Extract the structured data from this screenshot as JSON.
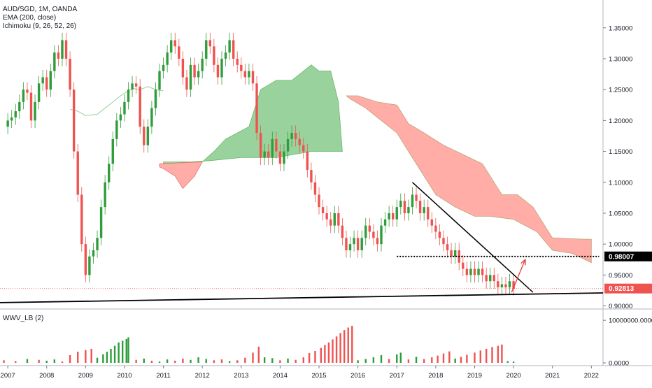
{
  "legend": {
    "title": "AUD/SGD, 1M, OANDA",
    "ema": "EMA (200, close)",
    "ichimoku": "Ichimoku (9, 26, 52, 26)",
    "volume": "WWV_LB (2)"
  },
  "colors": {
    "up": "#26a69a",
    "up_candle": "#2e9d3a",
    "down_candle": "#ef5350",
    "cloud_bull": "#81c784",
    "cloud_bear": "#ff8a80",
    "ema": "#a5d6a7",
    "price_marker": "#ef5350",
    "trendline": "#000000",
    "arrow": "#e53935"
  },
  "chart_data": [
    {
      "type": "candlestick",
      "title": "AUD/SGD, 1M, OANDA",
      "x_ticks": [
        "2007",
        "2008",
        "2009",
        "2010",
        "2011",
        "2012",
        "2013",
        "2014",
        "2015",
        "2016",
        "2017",
        "2018",
        "2019",
        "2020",
        "2021",
        "2022"
      ],
      "y_ticks": [
        "1.35000",
        "1.30000",
        "1.25000",
        "1.20000",
        "1.15000",
        "1.10000",
        "1.05000",
        "1.00000",
        "0.95000",
        "0.90000"
      ],
      "ylim": [
        0.895,
        1.395
      ],
      "xlim": [
        2006.8,
        2022.3
      ],
      "last_price": "0.92813",
      "level_marker": "0.98007",
      "series_close": [
        [
          2006.9,
          1.19
        ],
        [
          2007.0,
          1.2
        ],
        [
          2007.1,
          1.205
        ],
        [
          2007.2,
          1.215
        ],
        [
          2007.3,
          1.23
        ],
        [
          2007.4,
          1.25
        ],
        [
          2007.5,
          1.245
        ],
        [
          2007.6,
          1.2
        ],
        [
          2007.7,
          1.23
        ],
        [
          2007.8,
          1.26
        ],
        [
          2007.9,
          1.27
        ],
        [
          2008.0,
          1.25
        ],
        [
          2008.1,
          1.28
        ],
        [
          2008.2,
          1.31
        ],
        [
          2008.3,
          1.3
        ],
        [
          2008.4,
          1.33
        ],
        [
          2008.5,
          1.3
        ],
        [
          2008.6,
          1.25
        ],
        [
          2008.7,
          1.15
        ],
        [
          2008.8,
          1.08
        ],
        [
          2008.9,
          1.0
        ],
        [
          2009.0,
          0.95
        ],
        [
          2009.1,
          0.98
        ],
        [
          2009.2,
          0.99
        ],
        [
          2009.3,
          1.01
        ],
        [
          2009.4,
          1.06
        ],
        [
          2009.5,
          1.1
        ],
        [
          2009.6,
          1.13
        ],
        [
          2009.7,
          1.17
        ],
        [
          2009.8,
          1.2
        ],
        [
          2009.9,
          1.21
        ],
        [
          2010.0,
          1.23
        ],
        [
          2010.1,
          1.25
        ],
        [
          2010.2,
          1.26
        ],
        [
          2010.3,
          1.255
        ],
        [
          2010.4,
          1.19
        ],
        [
          2010.5,
          1.16
        ],
        [
          2010.6,
          1.19
        ],
        [
          2010.7,
          1.22
        ],
        [
          2010.8,
          1.25
        ],
        [
          2010.9,
          1.28
        ],
        [
          2011.0,
          1.29
        ],
        [
          2011.1,
          1.31
        ],
        [
          2011.2,
          1.33
        ],
        [
          2011.3,
          1.32
        ],
        [
          2011.4,
          1.3
        ],
        [
          2011.5,
          1.27
        ],
        [
          2011.6,
          1.25
        ],
        [
          2011.7,
          1.29
        ],
        [
          2011.8,
          1.27
        ],
        [
          2011.9,
          1.28
        ],
        [
          2012.0,
          1.3
        ],
        [
          2012.1,
          1.33
        ],
        [
          2012.2,
          1.32
        ],
        [
          2012.3,
          1.29
        ],
        [
          2012.4,
          1.27
        ],
        [
          2012.5,
          1.3
        ],
        [
          2012.6,
          1.31
        ],
        [
          2012.7,
          1.33
        ],
        [
          2012.8,
          1.3
        ],
        [
          2012.9,
          1.29
        ],
        [
          2013.0,
          1.28
        ],
        [
          2013.1,
          1.27
        ],
        [
          2013.2,
          1.28
        ],
        [
          2013.3,
          1.26
        ],
        [
          2013.4,
          1.18
        ],
        [
          2013.5,
          1.14
        ],
        [
          2013.6,
          1.15
        ],
        [
          2013.7,
          1.14
        ],
        [
          2013.8,
          1.17
        ],
        [
          2013.9,
          1.15
        ],
        [
          2014.0,
          1.13
        ],
        [
          2014.1,
          1.15
        ],
        [
          2014.2,
          1.17
        ],
        [
          2014.3,
          1.18
        ],
        [
          2014.4,
          1.17
        ],
        [
          2014.5,
          1.16
        ],
        [
          2014.6,
          1.15
        ],
        [
          2014.7,
          1.12
        ],
        [
          2014.8,
          1.1
        ],
        [
          2014.9,
          1.08
        ],
        [
          2015.0,
          1.06
        ],
        [
          2015.1,
          1.05
        ],
        [
          2015.2,
          1.04
        ],
        [
          2015.3,
          1.03
        ],
        [
          2015.4,
          1.05
        ],
        [
          2015.5,
          1.03
        ],
        [
          2015.6,
          1.01
        ],
        [
          2015.7,
          0.99
        ],
        [
          2015.8,
          1.0
        ],
        [
          2015.9,
          1.01
        ],
        [
          2016.0,
          0.99
        ],
        [
          2016.1,
          1.01
        ],
        [
          2016.2,
          1.03
        ],
        [
          2016.3,
          1.02
        ],
        [
          2016.4,
          1.01
        ],
        [
          2016.5,
          1.0
        ],
        [
          2016.6,
          1.03
        ],
        [
          2016.7,
          1.04
        ],
        [
          2016.8,
          1.05
        ],
        [
          2016.9,
          1.04
        ],
        [
          2017.0,
          1.06
        ],
        [
          2017.1,
          1.07
        ],
        [
          2017.2,
          1.05
        ],
        [
          2017.3,
          1.06
        ],
        [
          2017.4,
          1.08
        ],
        [
          2017.5,
          1.07
        ],
        [
          2017.6,
          1.05
        ],
        [
          2017.7,
          1.06
        ],
        [
          2017.8,
          1.04
        ],
        [
          2017.9,
          1.03
        ],
        [
          2018.0,
          1.02
        ],
        [
          2018.1,
          1.01
        ],
        [
          2018.2,
          1.0
        ],
        [
          2018.3,
          0.99
        ],
        [
          2018.4,
          0.98
        ],
        [
          2018.5,
          0.99
        ],
        [
          2018.6,
          0.97
        ],
        [
          2018.7,
          0.96
        ],
        [
          2018.8,
          0.95
        ],
        [
          2018.9,
          0.96
        ],
        [
          2019.0,
          0.95
        ],
        [
          2019.1,
          0.96
        ],
        [
          2019.2,
          0.95
        ],
        [
          2019.3,
          0.94
        ],
        [
          2019.4,
          0.95
        ],
        [
          2019.5,
          0.94
        ],
        [
          2019.6,
          0.93
        ],
        [
          2019.7,
          0.935
        ],
        [
          2019.8,
          0.93
        ],
        [
          2019.9,
          0.94
        ],
        [
          2020.0,
          0.928
        ]
      ],
      "cloud_bull": [
        [
          2011.0,
          1.133
        ],
        [
          2012.0,
          1.133
        ],
        [
          2012.3,
          1.15
        ],
        [
          2012.6,
          1.17
        ],
        [
          2012.9,
          1.18
        ],
        [
          2013.2,
          1.19
        ],
        [
          2013.5,
          1.25
        ],
        [
          2013.9,
          1.265
        ],
        [
          2014.3,
          1.265
        ],
        [
          2014.6,
          1.28
        ],
        [
          2014.8,
          1.29
        ],
        [
          2015.0,
          1.28
        ],
        [
          2015.3,
          1.28
        ],
        [
          2015.5,
          1.23
        ],
        [
          2015.6,
          1.15
        ],
        [
          2014.8,
          1.15
        ],
        [
          2013.9,
          1.14
        ],
        [
          2013.0,
          1.14
        ],
        [
          2012.2,
          1.135
        ],
        [
          2011.0,
          1.13
        ]
      ],
      "cloud_bear_early": [
        [
          2010.9,
          1.13
        ],
        [
          2012.0,
          1.133
        ],
        [
          2011.8,
          1.11
        ],
        [
          2011.5,
          1.09
        ],
        [
          2011.3,
          1.11
        ],
        [
          2011.0,
          1.122
        ],
        [
          2010.9,
          1.125
        ]
      ],
      "cloud_bear_late": [
        [
          2015.7,
          1.24
        ],
        [
          2016.0,
          1.24
        ],
        [
          2016.5,
          1.23
        ],
        [
          2017.0,
          1.225
        ],
        [
          2017.3,
          1.195
        ],
        [
          2017.7,
          1.18
        ],
        [
          2018.2,
          1.16
        ],
        [
          2018.7,
          1.145
        ],
        [
          2019.2,
          1.13
        ],
        [
          2019.7,
          1.08
        ],
        [
          2020.1,
          1.08
        ],
        [
          2020.5,
          1.06
        ],
        [
          2021.0,
          1.01
        ],
        [
          2021.8,
          1.008
        ],
        [
          2022.0,
          1.008
        ],
        [
          2022.0,
          0.97
        ],
        [
          2021.5,
          0.985
        ],
        [
          2021.0,
          0.99
        ],
        [
          2020.6,
          1.02
        ],
        [
          2020.0,
          1.04
        ],
        [
          2019.4,
          1.045
        ],
        [
          2019.0,
          1.045
        ],
        [
          2018.5,
          1.06
        ],
        [
          2018.0,
          1.08
        ],
        [
          2017.6,
          1.12
        ],
        [
          2017.3,
          1.15
        ],
        [
          2017.0,
          1.18
        ],
        [
          2016.6,
          1.2
        ],
        [
          2016.2,
          1.22
        ],
        [
          2015.8,
          1.235
        ]
      ],
      "ema_line": [
        [
          2008.6,
          1.218
        ],
        [
          2008.8,
          1.215
        ],
        [
          2009.0,
          1.208
        ],
        [
          2009.3,
          1.21
        ],
        [
          2009.6,
          1.225
        ],
        [
          2009.9,
          1.24
        ],
        [
          2010.2,
          1.252
        ],
        [
          2010.4,
          1.25
        ],
        [
          2010.6,
          1.255
        ],
        [
          2010.8,
          1.25
        ],
        [
          2011.0,
          1.248
        ]
      ],
      "trendline_down": [
        [
          2017.4,
          1.1
        ],
        [
          2020.5,
          0.922
        ]
      ],
      "trendline_support": [
        [
          2006.5,
          0.905
        ],
        [
          2022.3,
          0.921
        ]
      ],
      "dotted_level": [
        [
          2017.0,
          0.98
        ],
        [
          2022.2,
          0.98
        ]
      ],
      "arrow": [
        [
          2019.95,
          0.922
        ],
        [
          2020.3,
          0.975
        ]
      ]
    },
    {
      "type": "bar",
      "title": "WWV_LB (2)",
      "y_ticks": [
        "10000000.0000",
        "0.0000"
      ],
      "ylim": [
        0,
        12000000
      ],
      "bars": [
        [
          2006.9,
          600000,
          "down"
        ],
        [
          2007.2,
          400000,
          "down"
        ],
        [
          2007.5,
          900000,
          "up"
        ],
        [
          2007.8,
          700000,
          "down"
        ],
        [
          2008.0,
          500000,
          "up"
        ],
        [
          2008.2,
          800000,
          "up"
        ],
        [
          2008.4,
          300000,
          "down"
        ],
        [
          2008.6,
          1800000,
          "down"
        ],
        [
          2008.8,
          2600000,
          "down"
        ],
        [
          2009.0,
          3000000,
          "down"
        ],
        [
          2009.15,
          3300000,
          "down"
        ],
        [
          2009.3,
          1200000,
          "up"
        ],
        [
          2009.45,
          2000000,
          "up"
        ],
        [
          2009.55,
          2600000,
          "up"
        ],
        [
          2009.65,
          3300000,
          "up"
        ],
        [
          2009.75,
          4000000,
          "up"
        ],
        [
          2009.85,
          4800000,
          "up"
        ],
        [
          2009.95,
          5200000,
          "up"
        ],
        [
          2010.05,
          5600000,
          "up"
        ],
        [
          2010.1,
          6000000,
          "up"
        ],
        [
          2010.3,
          700000,
          "down"
        ],
        [
          2010.5,
          1000000,
          "up"
        ],
        [
          2010.7,
          500000,
          "down"
        ],
        [
          2010.9,
          300000,
          "up"
        ],
        [
          2011.1,
          800000,
          "up"
        ],
        [
          2011.3,
          500000,
          "down"
        ],
        [
          2011.5,
          1000000,
          "down"
        ],
        [
          2011.7,
          700000,
          "up"
        ],
        [
          2011.9,
          1300000,
          "up"
        ],
        [
          2012.1,
          900000,
          "up"
        ],
        [
          2012.3,
          600000,
          "down"
        ],
        [
          2012.5,
          800000,
          "down"
        ],
        [
          2012.7,
          400000,
          "up"
        ],
        [
          2012.9,
          600000,
          "down"
        ],
        [
          2013.1,
          1200000,
          "down"
        ],
        [
          2013.3,
          2400000,
          "down"
        ],
        [
          2013.45,
          3800000,
          "down"
        ],
        [
          2013.6,
          1300000,
          "up"
        ],
        [
          2013.8,
          1100000,
          "up"
        ],
        [
          2014.0,
          600000,
          "down"
        ],
        [
          2014.2,
          1000000,
          "up"
        ],
        [
          2014.4,
          700000,
          "down"
        ],
        [
          2014.6,
          1300000,
          "down"
        ],
        [
          2014.75,
          2300000,
          "down"
        ],
        [
          2014.9,
          2800000,
          "down"
        ],
        [
          2015.05,
          3500000,
          "down"
        ],
        [
          2015.15,
          4200000,
          "down"
        ],
        [
          2015.25,
          4800000,
          "down"
        ],
        [
          2015.35,
          5500000,
          "down"
        ],
        [
          2015.45,
          6200000,
          "down"
        ],
        [
          2015.55,
          7000000,
          "down"
        ],
        [
          2015.65,
          7700000,
          "down"
        ],
        [
          2015.75,
          8300000,
          "down"
        ],
        [
          2015.85,
          8700000,
          "down"
        ],
        [
          2016.0,
          600000,
          "up"
        ],
        [
          2016.2,
          900000,
          "up"
        ],
        [
          2016.4,
          1300000,
          "up"
        ],
        [
          2016.6,
          1800000,
          "up"
        ],
        [
          2016.8,
          900000,
          "down"
        ],
        [
          2017.0,
          2000000,
          "up"
        ],
        [
          2017.1,
          2400000,
          "up"
        ],
        [
          2017.3,
          800000,
          "down"
        ],
        [
          2017.5,
          1400000,
          "up"
        ],
        [
          2017.7,
          900000,
          "down"
        ],
        [
          2017.9,
          1300000,
          "down"
        ],
        [
          2018.05,
          1700000,
          "down"
        ],
        [
          2018.2,
          2200000,
          "down"
        ],
        [
          2018.35,
          2700000,
          "down"
        ],
        [
          2018.5,
          1000000,
          "up"
        ],
        [
          2018.65,
          1400000,
          "down"
        ],
        [
          2018.8,
          1900000,
          "down"
        ],
        [
          2019.0,
          2400000,
          "down"
        ],
        [
          2019.15,
          2900000,
          "down"
        ],
        [
          2019.3,
          3300000,
          "down"
        ],
        [
          2019.45,
          3700000,
          "down"
        ],
        [
          2019.6,
          4000000,
          "down"
        ],
        [
          2019.7,
          4300000,
          "down"
        ],
        [
          2019.85,
          400000,
          "up"
        ],
        [
          2020.0,
          300000,
          "up"
        ]
      ]
    }
  ]
}
